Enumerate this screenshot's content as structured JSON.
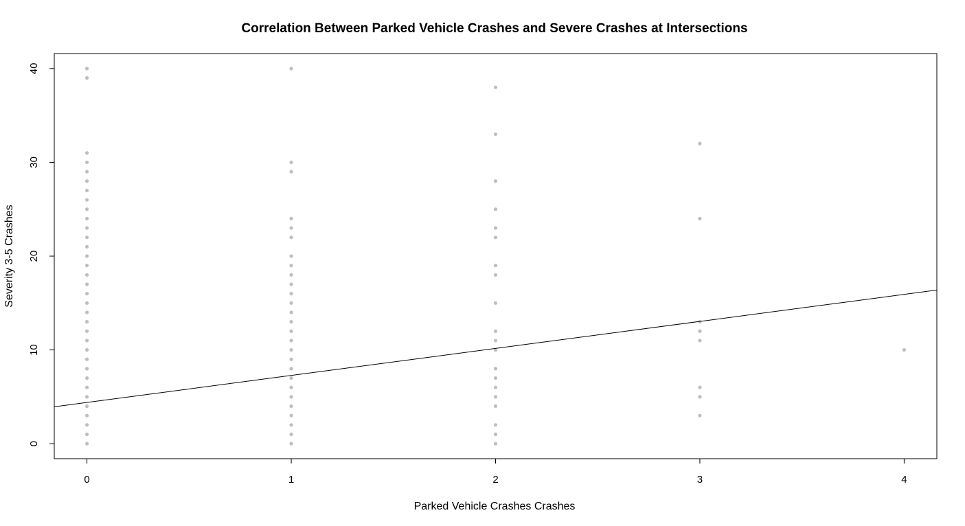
{
  "chart_data": {
    "type": "scatter",
    "title": "Correlation Between Parked Vehicle Crashes and Severe Crashes at Intersections",
    "xlabel": "Parked Vehicle Crashes Crashes",
    "ylabel": "Severity 3-5 Crashes",
    "xlim": [
      -0.16,
      4.16
    ],
    "ylim": [
      -1.6,
      41.6
    ],
    "xticks": [
      0,
      1,
      2,
      3,
      4
    ],
    "yticks": [
      0,
      10,
      20,
      30,
      40
    ],
    "grid": false,
    "point_color": "#bebebe",
    "line_color": "#000000",
    "points": [
      {
        "x": 0,
        "y": 0
      },
      {
        "x": 0,
        "y": 1
      },
      {
        "x": 0,
        "y": 2
      },
      {
        "x": 0,
        "y": 3
      },
      {
        "x": 0,
        "y": 4
      },
      {
        "x": 0,
        "y": 5
      },
      {
        "x": 0,
        "y": 6
      },
      {
        "x": 0,
        "y": 7
      },
      {
        "x": 0,
        "y": 8
      },
      {
        "x": 0,
        "y": 9
      },
      {
        "x": 0,
        "y": 10
      },
      {
        "x": 0,
        "y": 11
      },
      {
        "x": 0,
        "y": 12
      },
      {
        "x": 0,
        "y": 13
      },
      {
        "x": 0,
        "y": 14
      },
      {
        "x": 0,
        "y": 15
      },
      {
        "x": 0,
        "y": 16
      },
      {
        "x": 0,
        "y": 17
      },
      {
        "x": 0,
        "y": 18
      },
      {
        "x": 0,
        "y": 19
      },
      {
        "x": 0,
        "y": 20
      },
      {
        "x": 0,
        "y": 21
      },
      {
        "x": 0,
        "y": 22
      },
      {
        "x": 0,
        "y": 23
      },
      {
        "x": 0,
        "y": 24
      },
      {
        "x": 0,
        "y": 25
      },
      {
        "x": 0,
        "y": 26
      },
      {
        "x": 0,
        "y": 27
      },
      {
        "x": 0,
        "y": 28
      },
      {
        "x": 0,
        "y": 29
      },
      {
        "x": 0,
        "y": 30
      },
      {
        "x": 0,
        "y": 31
      },
      {
        "x": 0,
        "y": 39
      },
      {
        "x": 0,
        "y": 40
      },
      {
        "x": 1,
        "y": 0
      },
      {
        "x": 1,
        "y": 1
      },
      {
        "x": 1,
        "y": 2
      },
      {
        "x": 1,
        "y": 3
      },
      {
        "x": 1,
        "y": 4
      },
      {
        "x": 1,
        "y": 5
      },
      {
        "x": 1,
        "y": 6
      },
      {
        "x": 1,
        "y": 7
      },
      {
        "x": 1,
        "y": 8
      },
      {
        "x": 1,
        "y": 9
      },
      {
        "x": 1,
        "y": 10
      },
      {
        "x": 1,
        "y": 11
      },
      {
        "x": 1,
        "y": 12
      },
      {
        "x": 1,
        "y": 13
      },
      {
        "x": 1,
        "y": 14
      },
      {
        "x": 1,
        "y": 15
      },
      {
        "x": 1,
        "y": 16
      },
      {
        "x": 1,
        "y": 17
      },
      {
        "x": 1,
        "y": 18
      },
      {
        "x": 1,
        "y": 19
      },
      {
        "x": 1,
        "y": 20
      },
      {
        "x": 1,
        "y": 22
      },
      {
        "x": 1,
        "y": 23
      },
      {
        "x": 1,
        "y": 24
      },
      {
        "x": 1,
        "y": 29
      },
      {
        "x": 1,
        "y": 30
      },
      {
        "x": 1,
        "y": 40
      },
      {
        "x": 2,
        "y": 0
      },
      {
        "x": 2,
        "y": 1
      },
      {
        "x": 2,
        "y": 2
      },
      {
        "x": 2,
        "y": 4
      },
      {
        "x": 2,
        "y": 5
      },
      {
        "x": 2,
        "y": 6
      },
      {
        "x": 2,
        "y": 7
      },
      {
        "x": 2,
        "y": 8
      },
      {
        "x": 2,
        "y": 10
      },
      {
        "x": 2,
        "y": 11
      },
      {
        "x": 2,
        "y": 12
      },
      {
        "x": 2,
        "y": 15
      },
      {
        "x": 2,
        "y": 18
      },
      {
        "x": 2,
        "y": 19
      },
      {
        "x": 2,
        "y": 22
      },
      {
        "x": 2,
        "y": 23
      },
      {
        "x": 2,
        "y": 25
      },
      {
        "x": 2,
        "y": 28
      },
      {
        "x": 2,
        "y": 33
      },
      {
        "x": 2,
        "y": 38
      },
      {
        "x": 3,
        "y": 3
      },
      {
        "x": 3,
        "y": 5
      },
      {
        "x": 3,
        "y": 6
      },
      {
        "x": 3,
        "y": 11
      },
      {
        "x": 3,
        "y": 12
      },
      {
        "x": 3,
        "y": 13
      },
      {
        "x": 3,
        "y": 24
      },
      {
        "x": 3,
        "y": 32
      },
      {
        "x": 4,
        "y": 10
      }
    ],
    "regression_line": {
      "intercept": 4.4,
      "slope": 2.88
    }
  }
}
